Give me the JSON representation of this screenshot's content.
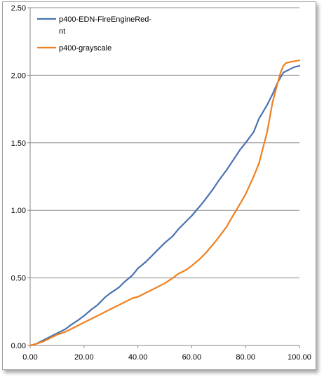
{
  "chart_data": {
    "type": "line",
    "title": "",
    "xlabel": "",
    "ylabel": "",
    "xlim": [
      0,
      100
    ],
    "ylim": [
      0,
      2.5
    ],
    "grid": "horizontal",
    "legend_position": "top-left",
    "x_ticks": [
      "0.00",
      "20.00",
      "40.00",
      "60.00",
      "80.00",
      "100.00"
    ],
    "x_tick_values": [
      0,
      20,
      40,
      60,
      80,
      100
    ],
    "y_ticks": [
      "0.00",
      "0.50",
      "1.00",
      "1.50",
      "2.00",
      "2.50"
    ],
    "y_tick_values": [
      0,
      0.5,
      1.0,
      1.5,
      2.0,
      2.5
    ],
    "series": [
      {
        "name": "p400-EDN-FireEngineRed-nt",
        "legend_lines": [
          "p400-EDN-FireEngineRed-",
          "nt"
        ],
        "color": "#4a72b0",
        "x": [
          0,
          2,
          5,
          8,
          10,
          13,
          15,
          18,
          20,
          23,
          25,
          28,
          30,
          33,
          35,
          38,
          40,
          43,
          45,
          48,
          50,
          53,
          55,
          58,
          60,
          63,
          65,
          68,
          70,
          73,
          75,
          78,
          80,
          83,
          85,
          88,
          90,
          92,
          94,
          96,
          98,
          100
        ],
        "y": [
          0.0,
          0.01,
          0.04,
          0.07,
          0.09,
          0.12,
          0.15,
          0.19,
          0.22,
          0.27,
          0.3,
          0.36,
          0.39,
          0.43,
          0.47,
          0.52,
          0.57,
          0.62,
          0.66,
          0.72,
          0.76,
          0.81,
          0.86,
          0.92,
          0.96,
          1.03,
          1.08,
          1.16,
          1.22,
          1.3,
          1.36,
          1.45,
          1.5,
          1.58,
          1.68,
          1.78,
          1.86,
          1.95,
          2.02,
          2.04,
          2.06,
          2.07
        ]
      },
      {
        "name": "p400-grayscale",
        "legend_lines": [
          "p400-grayscale"
        ],
        "color": "#f08020",
        "x": [
          0,
          2,
          5,
          8,
          10,
          13,
          15,
          18,
          20,
          23,
          25,
          28,
          30,
          33,
          35,
          38,
          40,
          43,
          45,
          48,
          50,
          53,
          55,
          58,
          60,
          63,
          65,
          68,
          70,
          73,
          75,
          78,
          80,
          83,
          85,
          88,
          90,
          92,
          93,
          94,
          95,
          97,
          100
        ],
        "y": [
          0.0,
          0.01,
          0.03,
          0.06,
          0.08,
          0.1,
          0.12,
          0.15,
          0.17,
          0.2,
          0.22,
          0.25,
          0.27,
          0.3,
          0.32,
          0.35,
          0.36,
          0.39,
          0.41,
          0.44,
          0.46,
          0.5,
          0.53,
          0.56,
          0.59,
          0.64,
          0.68,
          0.75,
          0.8,
          0.88,
          0.95,
          1.05,
          1.12,
          1.25,
          1.35,
          1.58,
          1.8,
          1.95,
          2.02,
          2.07,
          2.09,
          2.1,
          2.11
        ]
      }
    ]
  }
}
